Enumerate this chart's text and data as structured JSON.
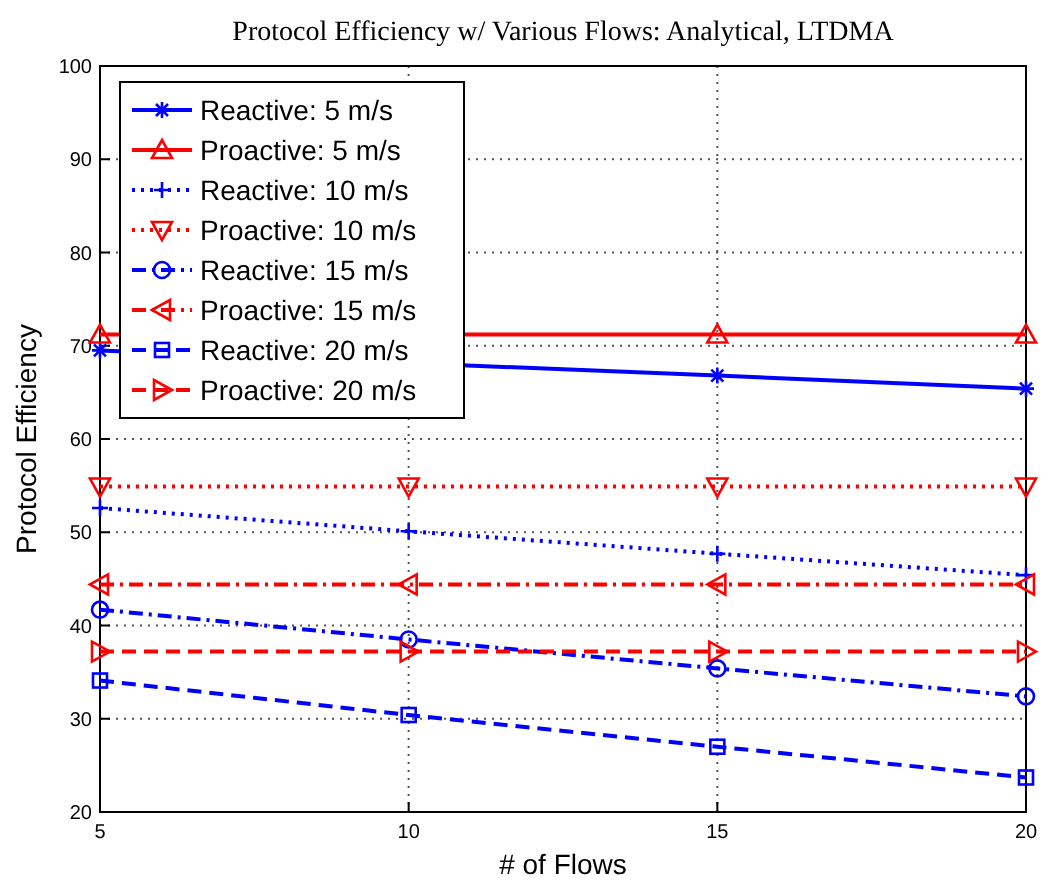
{
  "chart_data": {
    "type": "line",
    "title": "Protocol Efficiency w/ Various Flows: Analytical, LTDMA",
    "xlabel": "# of Flows",
    "ylabel": "Protocol Efficiency",
    "x": [
      5,
      10,
      15,
      20
    ],
    "xlim": [
      5,
      20
    ],
    "xticks": [
      5,
      10,
      15,
      20
    ],
    "ylim": [
      20,
      100
    ],
    "yticks": [
      20,
      30,
      40,
      50,
      60,
      70,
      80,
      90,
      100
    ],
    "grid": true,
    "legend": "top left",
    "series": [
      {
        "name": "Reactive: 5 m/s",
        "color": "#0000ff",
        "values": [
          69.5,
          null,
          66.8,
          65.4
        ],
        "marker": "cross",
        "line_style": "solid"
      },
      {
        "name": "Proactive: 5 m/s",
        "color": "#ff0000",
        "values": [
          71.2,
          null,
          71.2,
          71.2
        ],
        "marker": "triangle",
        "line_style": "solid"
      },
      {
        "name": "Reactive: 10 m/s",
        "color": "#0000ff",
        "values": [
          52.6,
          50.1,
          47.7,
          45.4
        ],
        "marker": "plus",
        "line_style": "dotted"
      },
      {
        "name": "Proactive: 10 m/s",
        "color": "#ff0000",
        "values": [
          54.9,
          54.9,
          54.9,
          54.9
        ],
        "marker": "triangle-down",
        "line_style": "dotted"
      },
      {
        "name": "Reactive: 15 m/s",
        "color": "#0000ff",
        "values": [
          41.7,
          38.5,
          35.4,
          32.4
        ],
        "marker": "circle",
        "line_style": "dashdot"
      },
      {
        "name": "Proactive: 15 m/s",
        "color": "#ff0000",
        "values": [
          44.4,
          44.4,
          44.4,
          44.4
        ],
        "marker": "triangle-left",
        "line_style": "dashdot"
      },
      {
        "name": "Reactive: 20 m/s",
        "color": "#0000ff",
        "values": [
          34.1,
          30.4,
          27.0,
          23.7
        ],
        "marker": "square",
        "line_style": "dashed"
      },
      {
        "name": "Proactive: 20 m/s",
        "color": "#ff0000",
        "values": [
          37.2,
          37.2,
          37.2,
          37.2
        ],
        "marker": "triangle-right",
        "line_style": "dashed"
      }
    ]
  }
}
